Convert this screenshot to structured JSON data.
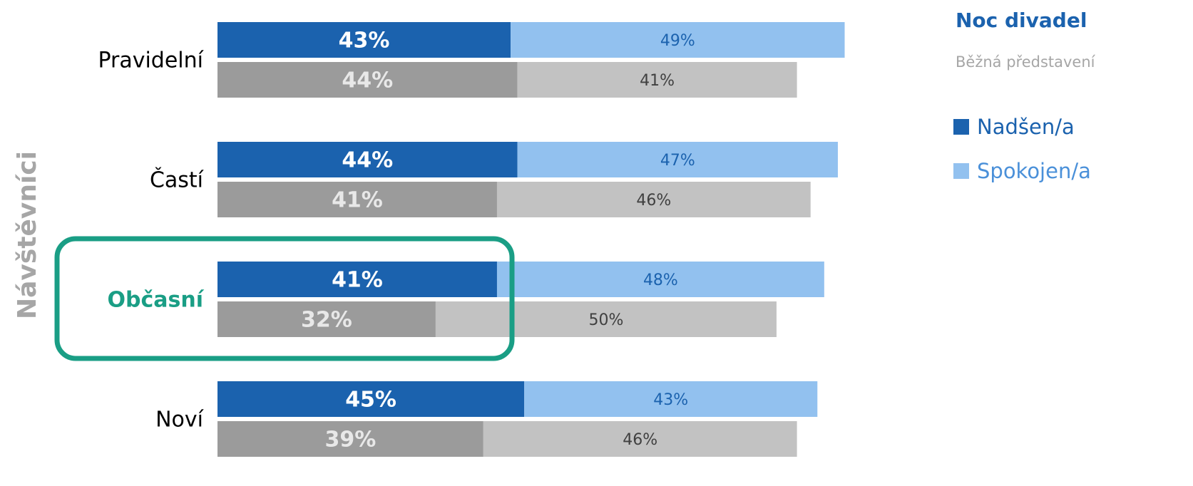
{
  "chart_data": {
    "type": "bar",
    "orientation": "horizontal",
    "stacked": true,
    "y_label": "Návštěvníci",
    "categories": [
      "Pravidelní",
      "Častí",
      "Občasní",
      "Noví"
    ],
    "highlight": {
      "category": 2,
      "color": "#1a9e85"
    },
    "xlim": [
      0,
      100
    ],
    "groups": [
      {
        "name": "Noc divadel",
        "series": [
          {
            "name": "Nadšen/a",
            "color": "#1b62ae",
            "values": [
              43,
              44,
              41,
              45
            ],
            "value_labels": [
              "43%",
              "44%",
              "41%",
              "45%"
            ]
          },
          {
            "name": "Spokojen/a",
            "color": "#92c1ef",
            "values": [
              49,
              47,
              48,
              43
            ],
            "value_labels": [
              "49%",
              "47%",
              "48%",
              "43%"
            ]
          }
        ]
      },
      {
        "name": "Běžná představení",
        "series": [
          {
            "color": "#9b9b9b",
            "values": [
              44,
              41,
              32,
              39
            ],
            "value_labels": [
              "44%",
              "41%",
              "32%",
              "39%"
            ]
          },
          {
            "color": "#c2c2c2",
            "values": [
              41,
              46,
              50,
              46
            ],
            "value_labels": [
              "41%",
              "46%",
              "50%",
              "46%"
            ]
          }
        ]
      }
    ]
  }
}
